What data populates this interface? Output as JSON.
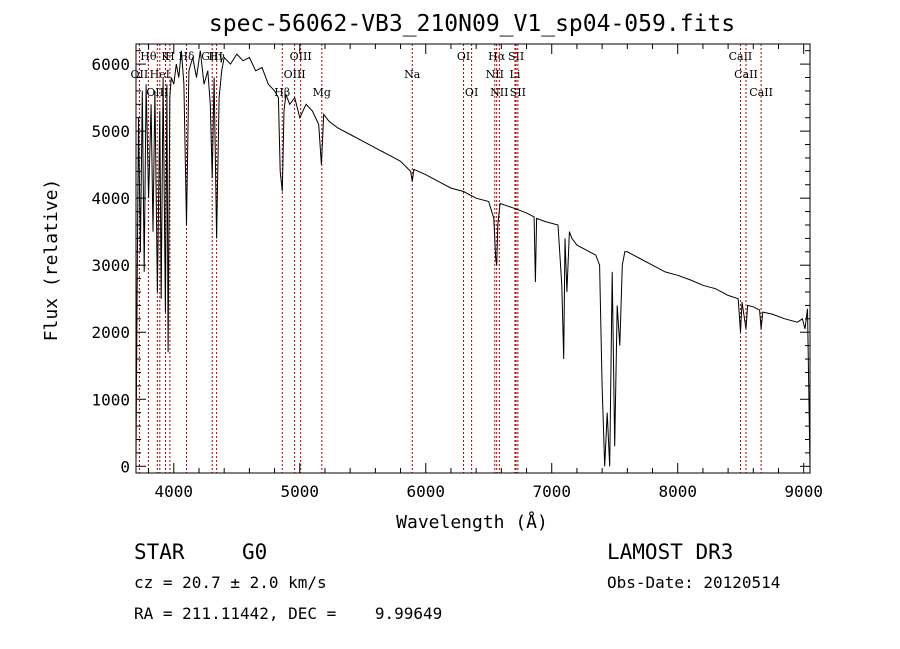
{
  "chart_data": {
    "type": "line",
    "title": "spec-56062-VB3_210N09_V1_sp04-059.fits",
    "xlabel": "Wavelength (Å)",
    "ylabel": "Flux (relative)",
    "xlim": [
      3700,
      9050
    ],
    "ylim": [
      -100,
      6300
    ],
    "xticks": [
      4000,
      5000,
      6000,
      7000,
      8000,
      9000
    ],
    "xtick_labels": [
      "4000",
      "5000",
      "6000",
      "7000",
      "8000",
      "9000"
    ],
    "yticks": [
      0,
      1000,
      2000,
      3000,
      4000,
      5000,
      6000
    ],
    "ytick_labels": [
      "0",
      "1000",
      "2000",
      "3000",
      "4000",
      "5000",
      "6000"
    ],
    "grid": false,
    "series": [
      {
        "name": "spectrum",
        "x": [
          3700,
          3710,
          3720,
          3735,
          3750,
          3765,
          3780,
          3800,
          3820,
          3835,
          3850,
          3870,
          3889,
          3900,
          3915,
          3933,
          3945,
          3955,
          3968,
          3980,
          4000,
          4020,
          4040,
          4060,
          4080,
          4101,
          4120,
          4150,
          4180,
          4210,
          4240,
          4270,
          4290,
          4305,
          4320,
          4340,
          4360,
          4380,
          4400,
          4450,
          4500,
          4550,
          4600,
          4650,
          4700,
          4750,
          4800,
          4830,
          4845,
          4861,
          4875,
          4890,
          4920,
          4960,
          5000,
          5050,
          5100,
          5150,
          5172,
          5190,
          5230,
          5300,
          5400,
          5500,
          5600,
          5700,
          5800,
          5880,
          5893,
          5905,
          6000,
          6100,
          6200,
          6300,
          6400,
          6500,
          6540,
          6555,
          6563,
          6572,
          6590,
          6700,
          6800,
          6860,
          6870,
          6880,
          6950,
          7050,
          7080,
          7095,
          7105,
          7120,
          7140,
          7160,
          7180,
          7200,
          7250,
          7300,
          7350,
          7380,
          7400,
          7420,
          7440,
          7460,
          7480,
          7500,
          7520,
          7540,
          7560,
          7580,
          7600,
          7700,
          7800,
          7900,
          8000,
          8100,
          8200,
          8300,
          8400,
          8480,
          8498,
          8510,
          8542,
          8555,
          8600,
          8650,
          8662,
          8675,
          8750,
          8850,
          8950,
          8990,
          9010,
          9030,
          9050
        ],
        "y": [
          100,
          3000,
          5200,
          3200,
          5600,
          2900,
          5700,
          4000,
          5400,
          3500,
          5600,
          2600,
          5300,
          2500,
          5800,
          2300,
          5700,
          1700,
          5500,
          5800,
          5700,
          6000,
          5800,
          6200,
          5700,
          3600,
          5900,
          6100,
          5800,
          6200,
          5700,
          5900,
          5400,
          4300,
          5800,
          3400,
          5500,
          5900,
          6100,
          6000,
          6150,
          6050,
          6100,
          5900,
          5950,
          5700,
          5600,
          5500,
          4400,
          4100,
          5300,
          5550,
          5400,
          5500,
          5200,
          5400,
          5300,
          5100,
          4500,
          5250,
          5150,
          5050,
          4950,
          4850,
          4750,
          4650,
          4550,
          4400,
          4250,
          4430,
          4350,
          4250,
          4150,
          4100,
          4000,
          3950,
          3700,
          3100,
          3000,
          3600,
          3920,
          3850,
          3780,
          3720,
          2750,
          3700,
          3650,
          3600,
          2700,
          1600,
          3400,
          2600,
          3500,
          3400,
          3350,
          3300,
          3250,
          3200,
          3150,
          3000,
          1200,
          0,
          800,
          0,
          2900,
          300,
          2400,
          1800,
          3000,
          3200,
          3200,
          3100,
          3000,
          2900,
          2850,
          2780,
          2700,
          2650,
          2550,
          2500,
          2000,
          2450,
          2050,
          2400,
          2380,
          2330,
          2050,
          2300,
          2270,
          2200,
          2150,
          2200,
          2050,
          2350,
          0
        ]
      }
    ],
    "lines": [
      {
        "name": "Hθ",
        "x": 3798,
        "row": 1
      },
      {
        "name": "K",
        "x": 3934,
        "row": 1
      },
      {
        "name": "H",
        "x": 3969,
        "row": 1
      },
      {
        "name": "GIII",
        "x": 4305,
        "row": 1
      },
      {
        "name": "OIII",
        "x": 5007,
        "row": 1
      },
      {
        "name": "OI",
        "x": 6300,
        "row": 1
      },
      {
        "name": "Hα",
        "x": 6563,
        "row": 1
      },
      {
        "name": "SII",
        "x": 6717,
        "row": 1
      },
      {
        "name": "CaII",
        "x": 8498,
        "row": 1
      },
      {
        "name": "OII",
        "x": 3727,
        "row": 2
      },
      {
        "name": "HeI",
        "x": 3889,
        "row": 2
      },
      {
        "name": "OIII",
        "x": 4959,
        "row": 2
      },
      {
        "name": "Na",
        "x": 5893,
        "row": 2
      },
      {
        "name": "NII",
        "x": 6548,
        "row": 2
      },
      {
        "name": "Li",
        "x": 6708,
        "row": 2
      },
      {
        "name": "CaII",
        "x": 8542,
        "row": 2
      },
      {
        "name": "OIII",
        "x": 3869,
        "row": 3
      },
      {
        "name": "Hβ",
        "x": 4861,
        "row": 3
      },
      {
        "name": "Mg",
        "x": 5175,
        "row": 3
      },
      {
        "name": "OI",
        "x": 6364,
        "row": 3
      },
      {
        "name": "NII",
        "x": 6584,
        "row": 3
      },
      {
        "name": "SII",
        "x": 6731,
        "row": 3
      },
      {
        "name": "CaII",
        "x": 8662,
        "row": 3
      },
      {
        "name": "Hδ",
        "x": 4101,
        "row": 0
      },
      {
        "name": "Hγ",
        "x": 4340,
        "row": 0
      }
    ],
    "line_color": "#b00000"
  },
  "info": {
    "class": "STAR",
    "subclass": "G0",
    "cz": "cz = 20.7 ± 2.0 km/s",
    "coords": "RA = 211.11442, DEC =    9.99649",
    "survey": "LAMOST DR3",
    "obs_date": "Obs-Date: 20120514"
  }
}
